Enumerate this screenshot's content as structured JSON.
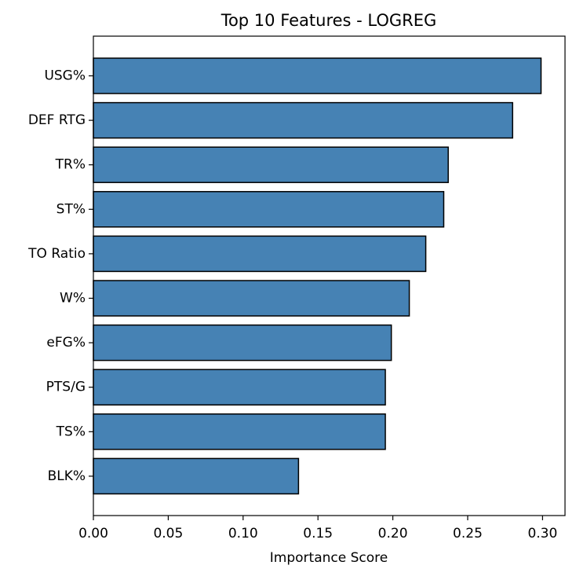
{
  "chart_data": {
    "type": "bar",
    "orientation": "horizontal",
    "title": "Top 10 Features - LOGREG",
    "xlabel": "Importance Score",
    "ylabel": "",
    "categories": [
      "USG%",
      "DEF RTG",
      "TR%",
      "ST%",
      "TO Ratio",
      "W%",
      "eFG%",
      "PTS/G",
      "TS%",
      "BLK%"
    ],
    "values": [
      0.299,
      0.28,
      0.237,
      0.234,
      0.222,
      0.211,
      0.199,
      0.195,
      0.195,
      0.137
    ],
    "xlim": [
      0,
      0.315
    ],
    "xticks": [
      "0.00",
      "0.05",
      "0.10",
      "0.15",
      "0.20",
      "0.25",
      "0.30"
    ],
    "grid": false,
    "colors": {
      "bar_fill": "#4682b4",
      "bar_edge": "#000000"
    }
  }
}
